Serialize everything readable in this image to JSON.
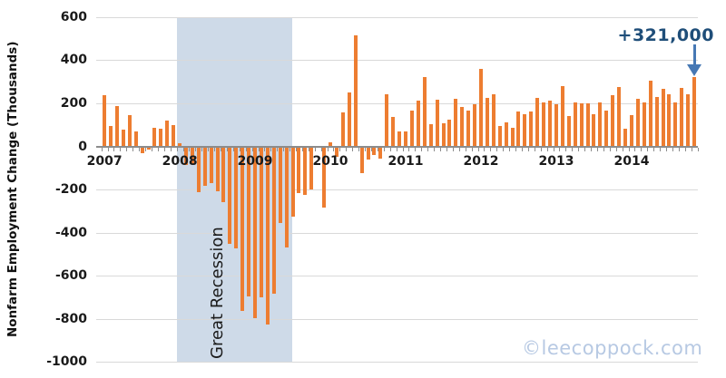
{
  "chart_data": {
    "type": "bar",
    "title": "",
    "ylabel": "Nonfarm Employment Change (Thousands)",
    "xlabel": "",
    "ylim": [
      -1000,
      600
    ],
    "y_ticks": [
      600,
      400,
      200,
      0,
      -200,
      -400,
      -600,
      -800,
      -1000
    ],
    "x_unit": "month",
    "x_range": "Jan 2007 - Nov 2014",
    "grid": true,
    "legend_position": "none",
    "bar_color": "#ED7D31",
    "gridline_color": "#D9D9D9",
    "axis_color": "#8C8C8C",
    "label_color": "#1A1A1A",
    "series": [
      {
        "name": "Monthly nonfarm employment change (thousands)",
        "by_year": [
          {
            "year": "2007",
            "values": [
              236,
              93,
              188,
              78,
              144,
              71,
              -33,
              -16,
              85,
              82,
              118,
              97
            ]
          },
          {
            "year": "2008",
            "values": [
              15,
              -86,
              -80,
              -214,
              -182,
              -172,
              -210,
              -259,
              -452,
              -474,
              -765,
              -697
            ]
          },
          {
            "year": "2009",
            "values": [
              -798,
              -701,
              -826,
              -684,
              -354,
              -467,
              -327,
              -216,
              -227,
              -198,
              -6,
              -283
            ]
          },
          {
            "year": "2010",
            "values": [
              18,
              -50,
              156,
              251,
              516,
              -122,
              -61,
              -42,
              -57,
              241,
              137,
              71
            ]
          },
          {
            "year": "2011",
            "values": [
              70,
              168,
              212,
              322,
              102,
              217,
              106,
              122,
              221,
              183,
              164,
              196
            ]
          },
          {
            "year": "2012",
            "values": [
              360,
              226,
              243,
              96,
              110,
              88,
              160,
              150,
              161,
              225,
              203,
              214
            ]
          },
          {
            "year": "2013",
            "values": [
              197,
              280,
              141,
              203,
              199,
              201,
              149,
              202,
              164,
              237,
              274,
              84
            ]
          },
          {
            "year": "2014",
            "values": [
              144,
              222,
              203,
              304,
              229,
              267,
              243,
              203,
              271,
              243,
              321
            ]
          }
        ]
      }
    ],
    "recession_band": {
      "label": "Great Recession",
      "start": "Dec 2007",
      "end": "Jun 2009",
      "fill": "#CEDAE8"
    },
    "annotation": {
      "label": "+321,000",
      "points_to": "Nov 2014",
      "text_color": "#1F4E79",
      "arrow_color": "#4678B4"
    },
    "watermark": {
      "text": "©leecoppock.com",
      "color": "#B7C9E3"
    }
  }
}
